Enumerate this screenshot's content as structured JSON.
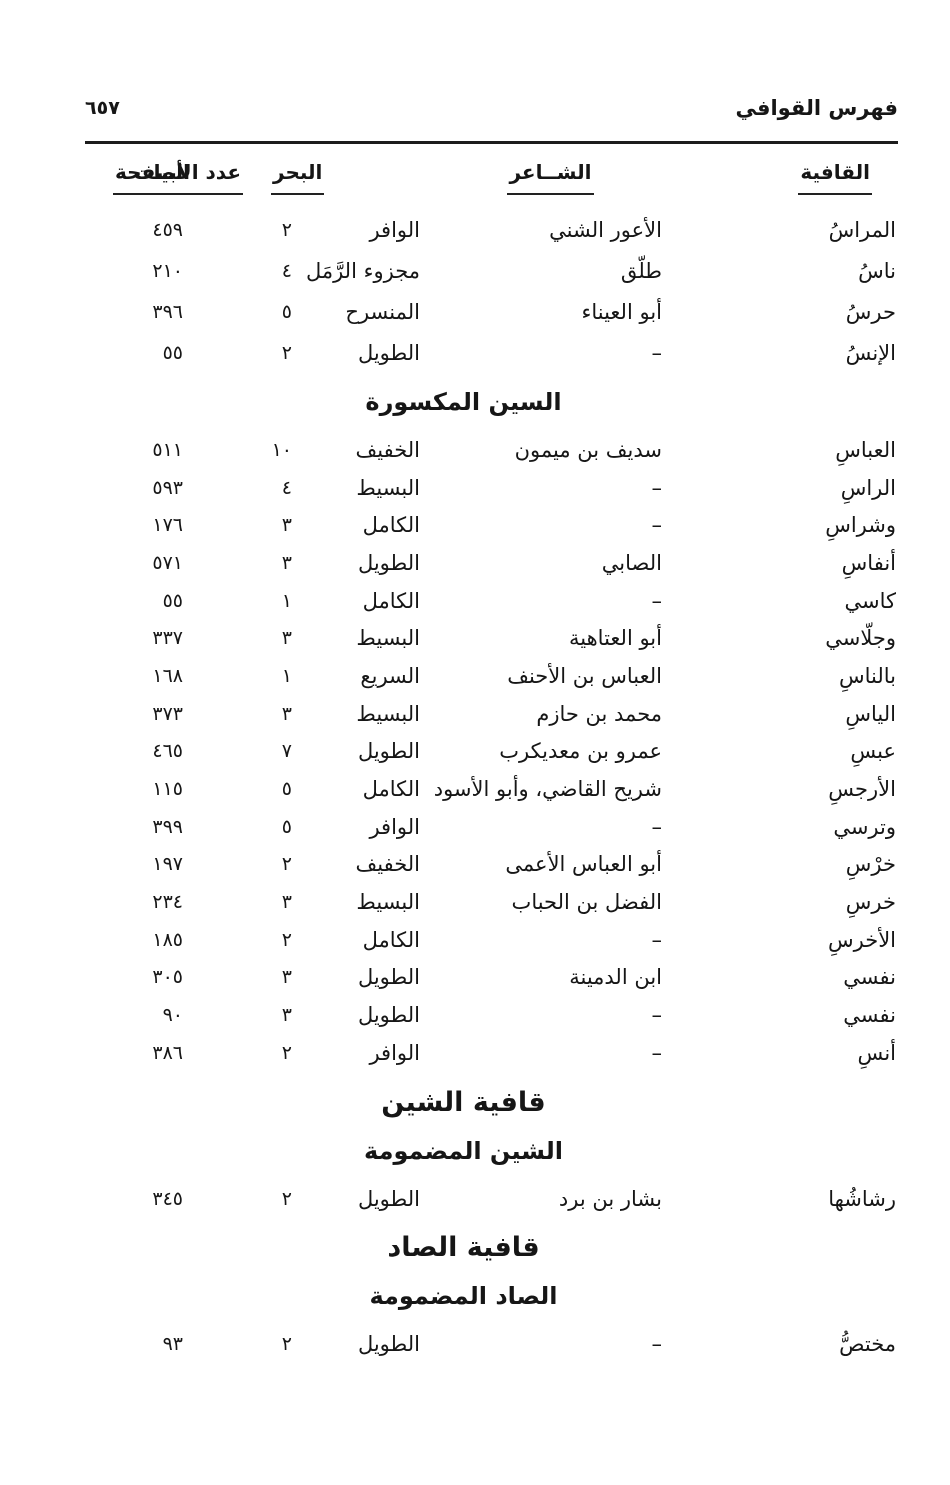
{
  "page_header": {
    "running_title": "فهرس القوافي",
    "folio_number": "٦٥٧"
  },
  "columns": {
    "rhyme": "القافية",
    "poet": "الشــاعر",
    "meter": "البحر",
    "verses": "عدد الأبيات",
    "page": "الصفحة"
  },
  "sections": [
    {
      "rows": [
        {
          "rhyme": "المراسُ",
          "poet": "الأعور الشني",
          "meter": "الوافر",
          "verses": "٢",
          "page": "٤٥٩"
        },
        {
          "rhyme": "ناسُ",
          "poet": "طلّق",
          "meter": "مجزوء الرَّمَل",
          "verses": "٤",
          "page": "٢١٠"
        },
        {
          "rhyme": "حرسُ",
          "poet": "أبو العيناء",
          "meter": "المنسرح",
          "verses": "٥",
          "page": "٣٩٦"
        },
        {
          "rhyme": "الإنسُ",
          "poet": "–",
          "meter": "الطويل",
          "verses": "٢",
          "page": "٥٥"
        }
      ]
    },
    {
      "subheading": "السين المكسورة",
      "rows": [
        {
          "rhyme": "العباسِ",
          "poet": "سديف بن ميمون",
          "meter": "الخفيف",
          "verses": "١٠",
          "page": "٥١١"
        },
        {
          "rhyme": "الراسِ",
          "poet": "–",
          "meter": "البسيط",
          "verses": "٤",
          "page": "٥٩٣"
        },
        {
          "rhyme": "وشراسِ",
          "poet": "–",
          "meter": "الكامل",
          "verses": "٣",
          "page": "١٧٦"
        },
        {
          "rhyme": "أنفاسِ",
          "poet": "الصابي",
          "meter": "الطويل",
          "verses": "٣",
          "page": "٥٧١"
        },
        {
          "rhyme": "كاسي",
          "poet": "–",
          "meter": "الكامل",
          "verses": "١",
          "page": "٥٥"
        },
        {
          "rhyme": "وجلّاسي",
          "poet": "أبو العتاهية",
          "meter": "البسيط",
          "verses": "٣",
          "page": "٣٣٧"
        },
        {
          "rhyme": "بالناسِ",
          "poet": "العباس بن الأحنف",
          "meter": "السريع",
          "verses": "١",
          "page": "١٦٨"
        },
        {
          "rhyme": "الياسِ",
          "poet": "محمد بن حازم",
          "meter": "البسيط",
          "verses": "٣",
          "page": "٣٧٣"
        },
        {
          "rhyme": "عبسِ",
          "poet": "عمرو بن معديكرب",
          "meter": "الطويل",
          "verses": "٧",
          "page": "٤٦٥"
        },
        {
          "rhyme": "الأرجسِ",
          "poet": "شريح القاضي، وأبو الأسود",
          "meter": "الكامل",
          "verses": "٥",
          "page": "١١٥"
        },
        {
          "rhyme": "وترسي",
          "poet": "–",
          "meter": "الوافر",
          "verses": "٥",
          "page": "٣٩٩"
        },
        {
          "rhyme": "خرْسِ",
          "poet": "أبو العباس الأعمى",
          "meter": "الخفيف",
          "verses": "٢",
          "page": "١٩٧"
        },
        {
          "rhyme": "خرسِ",
          "poet": "الفضل بن الحباب",
          "meter": "البسيط",
          "verses": "٣",
          "page": "٢٣٤"
        },
        {
          "rhyme": "الأخرسِ",
          "poet": "–",
          "meter": "الكامل",
          "verses": "٢",
          "page": "١٨٥"
        },
        {
          "rhyme": "نفسي",
          "poet": "ابن الدمينة",
          "meter": "الطويل",
          "verses": "٣",
          "page": "٣٠٥"
        },
        {
          "rhyme": "نفسي",
          "poet": "–",
          "meter": "الطويل",
          "verses": "٣",
          "page": "٩٠"
        },
        {
          "rhyme": "أنسِ",
          "poet": "–",
          "meter": "الوافر",
          "verses": "٢",
          "page": "٣٨٦"
        }
      ]
    },
    {
      "heading": "قافية الشين",
      "subheading": "الشين المضمومة",
      "rows": [
        {
          "rhyme": "رشاشُها",
          "poet": "بشار بن برد",
          "meter": "الطويل",
          "verses": "٢",
          "page": "٣٤٥"
        }
      ]
    },
    {
      "heading": "قافية الصاد",
      "subheading": "الصاد المضمومة",
      "rows": [
        {
          "rhyme": "مختصُّ",
          "poet": "–",
          "meter": "الطويل",
          "verses": "٢",
          "page": "٩٣"
        }
      ]
    }
  ]
}
